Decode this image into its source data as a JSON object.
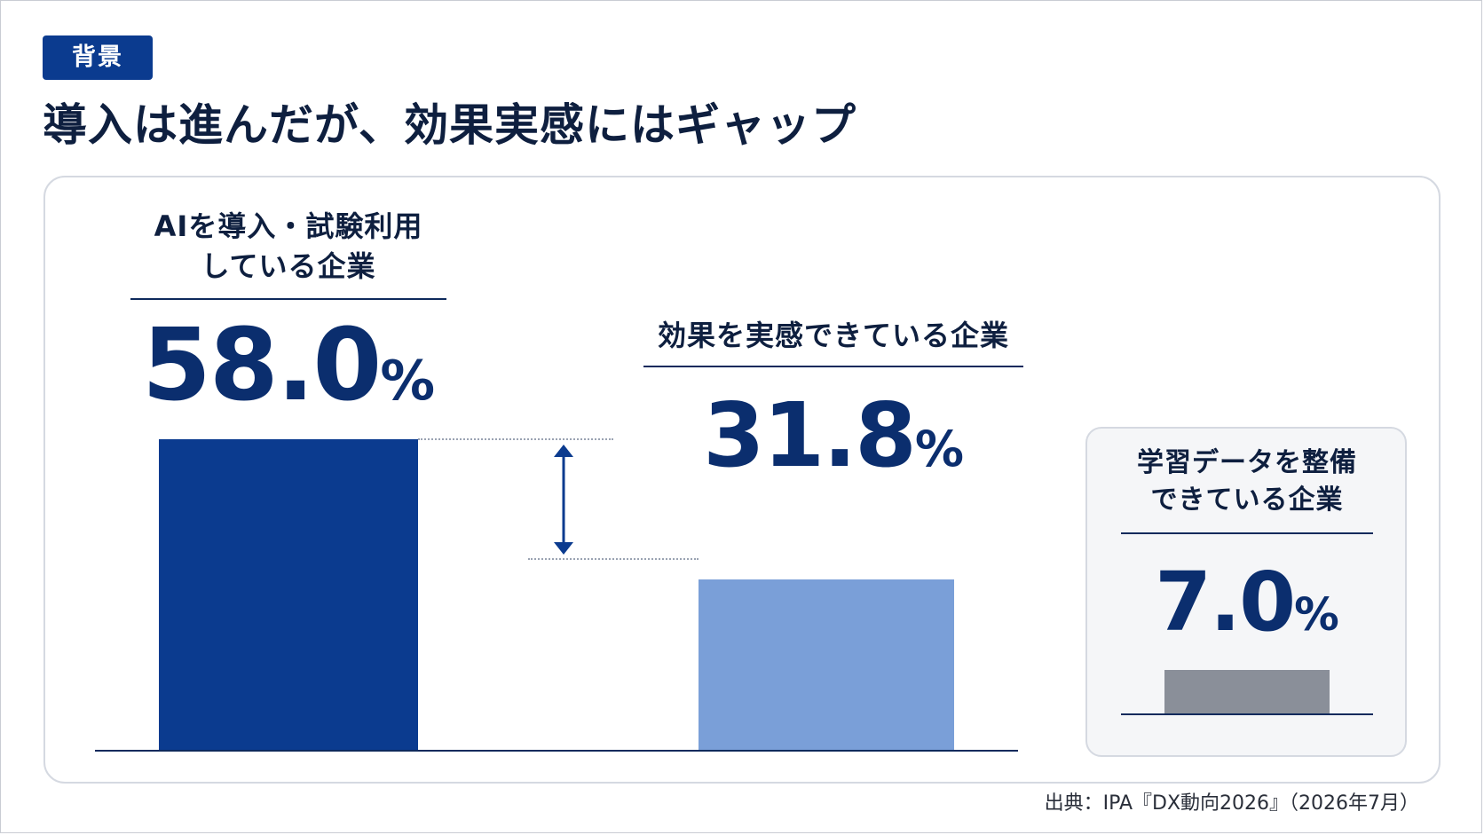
{
  "tag": "背景",
  "title": "導入は進んだが、効果実感にはギャップ",
  "source": "出典：IPA『DX動向2026』（2026年7月）",
  "colors": {
    "navy": "#0b3b8f",
    "light_blue": "#7a9fd8",
    "gray": "#8a8f99",
    "text_dark": "#0e1f3f"
  },
  "chart_data": {
    "type": "bar",
    "unit": "%",
    "categories": [
      "AIを導入・試験利用\nしている企業",
      "効果を実感できている企業",
      "学習データを整備\nできている企業"
    ],
    "values": [
      58.0,
      31.8,
      7.0
    ],
    "value_labels": [
      {
        "number": "58.0",
        "unit": "%"
      },
      {
        "number": "31.8",
        "unit": "%"
      },
      {
        "number": "7.0",
        "unit": "%"
      }
    ],
    "bar_colors": [
      "#0b3b8f",
      "#7a9fd8",
      "#8a8f99"
    ],
    "annotation": "gap arrow between 58.0% and 31.8%"
  }
}
